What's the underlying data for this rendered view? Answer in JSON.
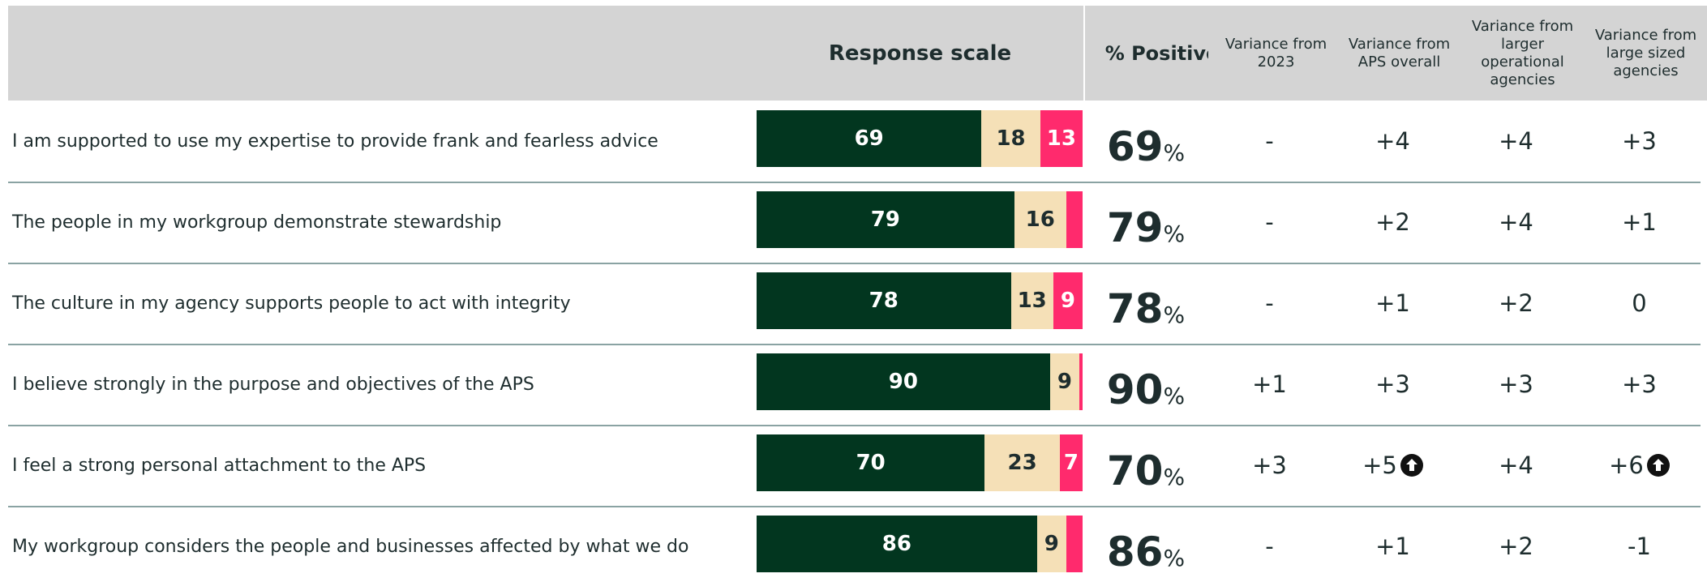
{
  "header": {
    "response_scale": "Response scale",
    "percent_positive": "% Positive",
    "variance_columns": [
      "Variance from 2023",
      "Variance from APS overall",
      "Variance from larger operational agencies",
      "Variance from large sized agencies"
    ]
  },
  "unit": "%",
  "colors": {
    "positive": "#02361f",
    "neutral": "#f5e0b7",
    "negative": "#ff2a6d"
  },
  "rows": [
    {
      "label": "I am supported to use my expertise to provide frank and fearless advice",
      "positive": 69,
      "neutral": 18,
      "negative": 13,
      "variance": [
        "-",
        "+4",
        "+4",
        "+3"
      ],
      "significant": [
        false,
        false,
        false,
        false
      ]
    },
    {
      "label": "The people in my workgroup demonstrate stewardship",
      "positive": 79,
      "neutral": 16,
      "negative": 5,
      "variance": [
        "-",
        "+2",
        "+4",
        "+1"
      ],
      "significant": [
        false,
        false,
        false,
        false
      ]
    },
    {
      "label": "The culture in my agency supports people to act with integrity",
      "positive": 78,
      "neutral": 13,
      "negative": 9,
      "variance": [
        "-",
        "+1",
        "+2",
        "0"
      ],
      "significant": [
        false,
        false,
        false,
        false
      ]
    },
    {
      "label": "I believe strongly in the purpose and objectives of the APS",
      "positive": 90,
      "neutral": 9,
      "negative": 1,
      "variance": [
        "+1",
        "+3",
        "+3",
        "+3"
      ],
      "significant": [
        false,
        false,
        false,
        false
      ]
    },
    {
      "label": "I feel a strong personal attachment to the APS",
      "positive": 70,
      "neutral": 23,
      "negative": 7,
      "variance": [
        "+3",
        "+5",
        "+4",
        "+6"
      ],
      "significant": [
        false,
        true,
        false,
        true
      ]
    },
    {
      "label": "My workgroup considers the people and businesses affected by what we do",
      "positive": 86,
      "neutral": 9,
      "negative": 5,
      "variance": [
        "-",
        "+1",
        "+2",
        "-1"
      ],
      "significant": [
        false,
        false,
        false,
        false
      ]
    }
  ]
}
